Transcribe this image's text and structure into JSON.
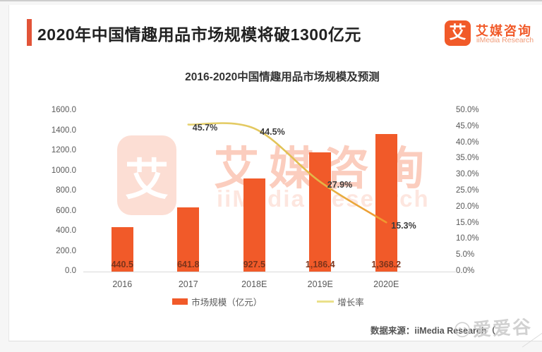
{
  "header": {
    "title": "2020年中国情趣用品市场规模将破1300亿元"
  },
  "brand": {
    "logo_char": "艾",
    "name_cn": "艾媒咨询",
    "name_en": "iiMedia Research"
  },
  "watermark": {
    "logo_char": "艾",
    "name_cn": "艾媒咨询",
    "name_en": "iiMedia Research",
    "corner_text": "爱爱谷"
  },
  "footer": {
    "source_text": "数据来源：iiMedia Research（"
  },
  "chart_data": {
    "type": "bar",
    "title": "2016-2020中国情趣用品市场规模及预测",
    "categories": [
      "2016",
      "2017",
      "2018E",
      "2019E",
      "2020E"
    ],
    "series": [
      {
        "name": "市场规模（亿元）",
        "type": "bar",
        "axis": "left",
        "color": "#F15A29",
        "values": [
          440.5,
          641.8,
          927.5,
          1186.4,
          1368.2
        ],
        "labels": [
          "440.5",
          "641.8",
          "927.5",
          "1,186.4",
          "1,368.2"
        ]
      },
      {
        "name": "增长率",
        "type": "line",
        "axis": "right",
        "color": "#E8D36B",
        "start_category": "2017",
        "values": [
          45.7,
          44.5,
          27.9,
          15.3
        ],
        "labels": [
          "45.7%",
          "44.5%",
          "27.9%",
          "15.3%"
        ]
      }
    ],
    "left_axis": {
      "min": 0,
      "max": 1600,
      "ticks": [
        "1600.0",
        "1400.0",
        "1200.0",
        "1000.0",
        "800.0",
        "600.0",
        "400.0",
        "200.0",
        "0.0"
      ]
    },
    "right_axis": {
      "min": 0,
      "max": 50,
      "ticks": [
        "50.0%",
        "45.0%",
        "40.0%",
        "35.0%",
        "30.0%",
        "25.0%",
        "20.0%",
        "15.0%",
        "10.0%",
        "5.0%",
        "0.0%"
      ]
    },
    "legend": {
      "position": "bottom",
      "items": [
        "市场规模（亿元）",
        "增长率"
      ]
    },
    "grid": false
  }
}
